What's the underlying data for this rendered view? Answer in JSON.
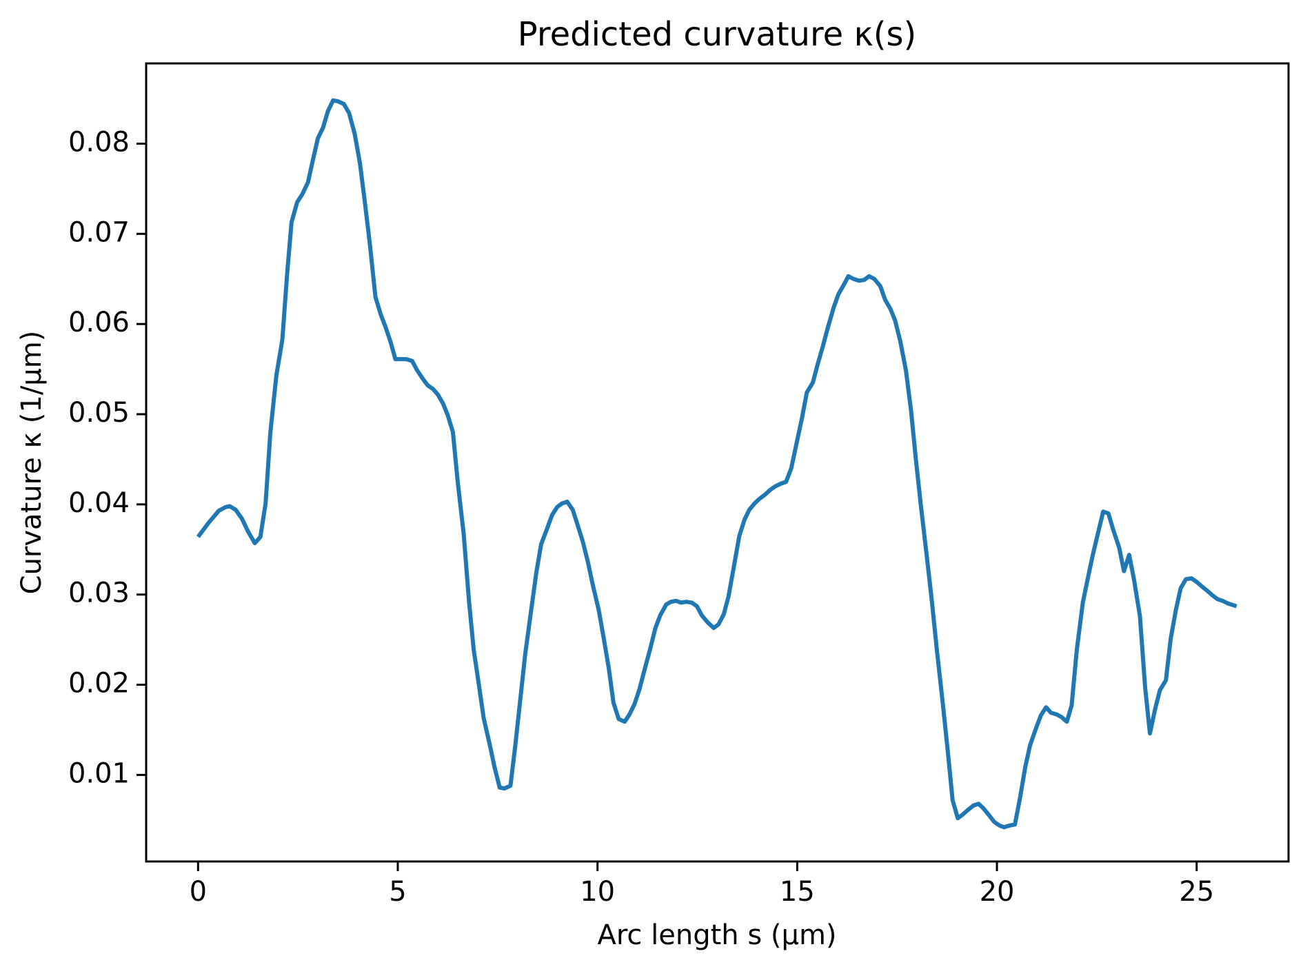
{
  "chart_data": {
    "type": "line",
    "title": "Predicted curvature κ(s)",
    "xlabel": "Arc length s (µm)",
    "ylabel": "Curvature κ (1/µm)",
    "color": "#1f77b4",
    "grid": false,
    "xlim": [
      -1.3,
      27.3
    ],
    "xticks": [
      0,
      5,
      10,
      15,
      20,
      25
    ],
    "ylim": [
      0.0004,
      0.0889
    ],
    "yticks": [
      0.01,
      0.02,
      0.03,
      0.04,
      0.05,
      0.06,
      0.07,
      0.08
    ],
    "x": [
      0,
      0.27,
      0.52,
      0.69,
      0.79,
      0.94,
      1.1,
      1.25,
      1.42,
      1.56,
      1.69,
      1.81,
      1.96,
      2.11,
      2.23,
      2.34,
      2.48,
      2.61,
      2.75,
      2.88,
      3.0,
      3.13,
      3.25,
      3.38,
      3.5,
      3.65,
      3.78,
      3.92,
      4.05,
      4.17,
      4.3,
      4.44,
      4.57,
      4.69,
      4.82,
      4.94,
      5.07,
      5.21,
      5.36,
      5.48,
      5.63,
      5.75,
      5.88,
      6.0,
      6.13,
      6.25,
      6.38,
      6.5,
      6.65,
      6.78,
      6.9,
      7.03,
      7.15,
      7.3,
      7.42,
      7.55,
      7.67,
      7.82,
      7.94,
      8.07,
      8.19,
      8.34,
      8.47,
      8.59,
      8.72,
      8.86,
      8.99,
      9.11,
      9.24,
      9.38,
      9.51,
      9.63,
      9.76,
      9.88,
      10.03,
      10.15,
      10.28,
      10.4,
      10.53,
      10.68,
      10.8,
      10.93,
      11.05,
      11.18,
      11.32,
      11.45,
      11.57,
      11.72,
      11.84,
      11.97,
      12.09,
      12.22,
      12.36,
      12.49,
      12.61,
      12.76,
      12.91,
      13.03,
      13.16,
      13.28,
      13.41,
      13.55,
      13.68,
      13.8,
      13.93,
      14.05,
      14.2,
      14.32,
      14.45,
      14.59,
      14.72,
      14.85,
      14.99,
      15.12,
      15.24,
      15.39,
      15.51,
      15.64,
      15.76,
      15.91,
      16.03,
      16.16,
      16.28,
      16.41,
      16.55,
      16.68,
      16.8,
      16.93,
      17.08,
      17.2,
      17.33,
      17.45,
      17.58,
      17.72,
      17.85,
      17.97,
      18.1,
      18.24,
      18.37,
      18.5,
      18.64,
      18.77,
      18.89,
      19.02,
      19.14,
      19.27,
      19.41,
      19.54,
      19.66,
      19.79,
      19.93,
      20.06,
      20.18,
      20.33,
      20.45,
      20.58,
      20.71,
      20.83,
      20.98,
      21.1,
      21.23,
      21.35,
      21.5,
      21.62,
      21.75,
      21.87,
      22.0,
      22.15,
      22.27,
      22.4,
      22.54,
      22.66,
      22.79,
      22.91,
      23.06,
      23.18,
      23.31,
      23.43,
      23.58,
      23.71,
      23.83,
      23.96,
      24.08,
      24.23,
      24.35,
      24.48,
      24.6,
      24.73,
      24.87,
      25.0,
      25.13,
      25.27,
      25.4,
      25.52,
      25.65,
      25.79,
      26.0
    ],
    "values": [
      0.0364,
      0.038,
      0.0393,
      0.0397,
      0.0398,
      0.0394,
      0.0384,
      0.037,
      0.0357,
      0.0364,
      0.0401,
      0.048,
      0.0543,
      0.0583,
      0.0656,
      0.0713,
      0.0735,
      0.0744,
      0.0757,
      0.0783,
      0.0806,
      0.0818,
      0.0836,
      0.0848,
      0.0847,
      0.0844,
      0.0834,
      0.0811,
      0.0779,
      0.0737,
      0.0689,
      0.063,
      0.0611,
      0.0597,
      0.058,
      0.0561,
      0.0561,
      0.0561,
      0.0559,
      0.0549,
      0.0539,
      0.0532,
      0.0528,
      0.0522,
      0.0512,
      0.0499,
      0.048,
      0.0425,
      0.0367,
      0.0294,
      0.0239,
      0.02,
      0.0163,
      0.0134,
      0.0109,
      0.0086,
      0.0085,
      0.0088,
      0.0132,
      0.0185,
      0.0234,
      0.0283,
      0.0325,
      0.0356,
      0.0371,
      0.0388,
      0.0397,
      0.0401,
      0.0403,
      0.0394,
      0.0376,
      0.0359,
      0.0336,
      0.0311,
      0.0283,
      0.0253,
      0.0219,
      0.018,
      0.0162,
      0.0159,
      0.0167,
      0.0179,
      0.0195,
      0.0217,
      0.024,
      0.0263,
      0.0277,
      0.0289,
      0.0292,
      0.0293,
      0.0291,
      0.0292,
      0.0291,
      0.0287,
      0.0277,
      0.0269,
      0.0263,
      0.0267,
      0.0278,
      0.0298,
      0.033,
      0.0365,
      0.0383,
      0.0394,
      0.0401,
      0.0406,
      0.0411,
      0.0416,
      0.042,
      0.0423,
      0.0425,
      0.044,
      0.0469,
      0.0496,
      0.0524,
      0.0535,
      0.0555,
      0.0575,
      0.0595,
      0.0618,
      0.0633,
      0.0643,
      0.0653,
      0.065,
      0.0648,
      0.0649,
      0.0653,
      0.065,
      0.0642,
      0.0627,
      0.0617,
      0.0604,
      0.0581,
      0.0549,
      0.0504,
      0.045,
      0.0397,
      0.0344,
      0.0293,
      0.0237,
      0.0181,
      0.0126,
      0.0072,
      0.0052,
      0.0056,
      0.0061,
      0.0066,
      0.0068,
      0.0063,
      0.0056,
      0.0048,
      0.0044,
      0.0042,
      0.0044,
      0.0045,
      0.0075,
      0.0109,
      0.0133,
      0.0152,
      0.0166,
      0.0175,
      0.0169,
      0.0167,
      0.0164,
      0.0159,
      0.0177,
      0.0239,
      0.0291,
      0.0317,
      0.0344,
      0.037,
      0.0392,
      0.039,
      0.0372,
      0.0352,
      0.0326,
      0.0344,
      0.0317,
      0.0276,
      0.0197,
      0.0146,
      0.0173,
      0.0194,
      0.0205,
      0.0251,
      0.0283,
      0.0307,
      0.0317,
      0.0318,
      0.0314,
      0.0309,
      0.0304,
      0.0299,
      0.0295,
      0.0293,
      0.029,
      0.0287
    ]
  }
}
